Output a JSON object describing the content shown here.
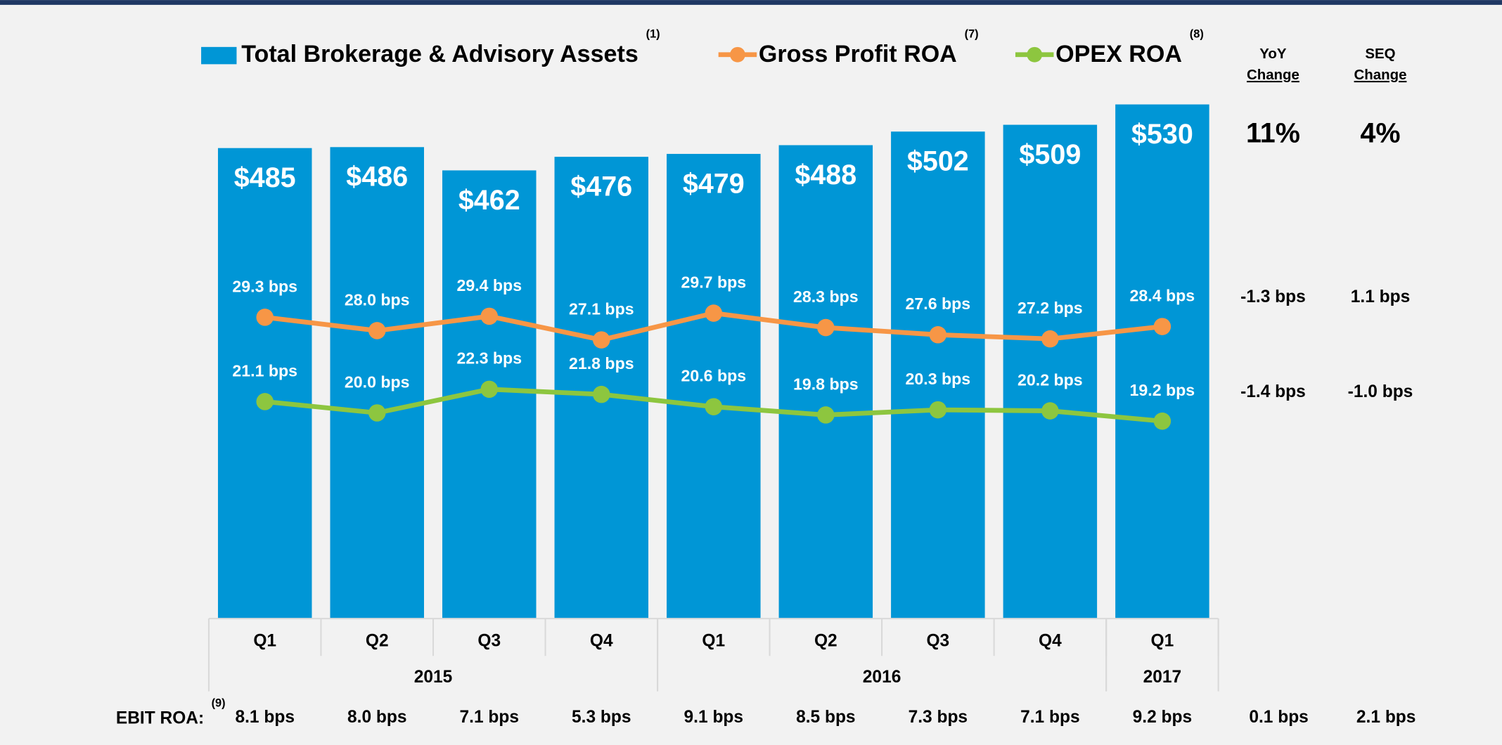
{
  "chart_data": {
    "type": "bar",
    "categories": [
      "Q1",
      "Q2",
      "Q3",
      "Q4",
      "Q1",
      "Q2",
      "Q3",
      "Q4",
      "Q1"
    ],
    "year_groups": [
      {
        "label": "2015",
        "size": 4
      },
      {
        "label": "2016",
        "size": 4
      },
      {
        "label": "2017",
        "size": 1
      }
    ],
    "series": [
      {
        "name": "Total Brokerage & Advisory Assets",
        "note": "(1)",
        "color": "#0096d6",
        "values": [
          485,
          486,
          462,
          476,
          479,
          488,
          502,
          509,
          530
        ],
        "value_labels": [
          "$485",
          "$486",
          "$462",
          "$476",
          "$479",
          "$488",
          "$502",
          "$509",
          "$530"
        ]
      },
      {
        "name": "Gross Profit ROA",
        "note": "(7)",
        "color": "#f79646",
        "axis": "y2",
        "values": [
          29.3,
          28.0,
          29.4,
          27.1,
          29.7,
          28.3,
          27.6,
          27.2,
          28.4
        ],
        "value_labels": [
          "29.3 bps",
          "28.0 bps",
          "29.4 bps",
          "27.1 bps",
          "29.7 bps",
          "28.3 bps",
          "27.6 bps",
          "27.2 bps",
          "28.4 bps"
        ]
      },
      {
        "name": "OPEX ROA",
        "note": "(8)",
        "color": "#8dc63f",
        "axis": "y2",
        "values": [
          21.1,
          20.0,
          22.3,
          21.8,
          20.6,
          19.8,
          20.3,
          20.2,
          19.2
        ],
        "value_labels": [
          "21.1 bps",
          "20.0 bps",
          "22.3 bps",
          "21.8 bps",
          "20.6 bps",
          "19.8 bps",
          "20.3 bps",
          "20.2 bps",
          "19.2 bps"
        ]
      }
    ],
    "ylim": [
      0,
      530
    ],
    "y2lim": [
      0,
      50
    ],
    "change_columns": {
      "headers": [
        {
          "line1": "YoY",
          "line2": "Change"
        },
        {
          "line1": "SEQ",
          "line2": "Change"
        }
      ],
      "rows": [
        [
          "11%",
          "4%"
        ],
        [
          "-1.3 bps",
          "1.1 bps"
        ],
        [
          "-1.4 bps",
          "-1.0 bps"
        ]
      ]
    },
    "ebit": {
      "label": "EBIT ROA:",
      "note": "(9)",
      "values": [
        8.1,
        8.0,
        7.1,
        5.3,
        9.1,
        8.5,
        7.3,
        7.1,
        9.2
      ],
      "value_labels": [
        "8.1 bps",
        "8.0 bps",
        "7.1 bps",
        "5.3 bps",
        "9.1 bps",
        "8.5 bps",
        "7.3 bps",
        "7.1 bps",
        "9.2 bps"
      ],
      "changes": [
        "0.1 bps",
        "2.1 bps"
      ]
    }
  }
}
